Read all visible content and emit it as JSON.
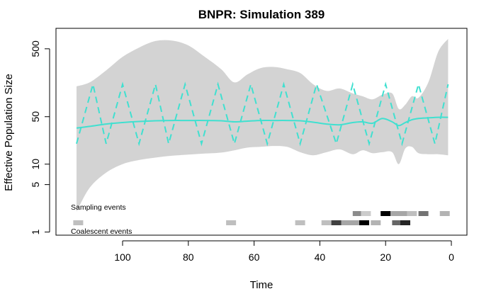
{
  "chart_data": {
    "type": "line",
    "title": "BNPR: Simulation 389",
    "xlabel": "Time",
    "ylabel": "Effective Population Size",
    "x_reversed": true,
    "y_scale": "log",
    "xlim": [
      115,
      0
    ],
    "ylim": [
      0.9,
      1000
    ],
    "x_ticks": [
      100,
      80,
      60,
      40,
      20,
      0
    ],
    "y_ticks": [
      1,
      5,
      10,
      50,
      500
    ],
    "colors": {
      "estimate": "#40e0d0",
      "band": "#d3d3d3",
      "truth": "#40e0d0"
    },
    "series": [
      {
        "style": "solid",
        "x": [
          114,
          110,
          105,
          100,
          95,
          90,
          85,
          80,
          75,
          70,
          66,
          62,
          58,
          54,
          50,
          46,
          42,
          38,
          34,
          30,
          27,
          24,
          21,
          18,
          16,
          14,
          12,
          10,
          7,
          4,
          1
        ],
        "y": [
          34,
          36,
          39,
          41,
          42.5,
          43.5,
          44,
          44,
          44,
          43.5,
          42,
          43,
          44,
          44,
          44,
          43.5,
          41.5,
          39,
          38,
          41,
          42,
          40,
          47,
          42,
          37,
          41,
          45,
          47,
          48,
          49,
          49
        ]
      },
      {
        "style": "dashed",
        "x": [
          114,
          109,
          105,
          100,
          95,
          90,
          86,
          81,
          76,
          71,
          66,
          61,
          56,
          51,
          46,
          41,
          35,
          30,
          25,
          20,
          15,
          10,
          5,
          1
        ],
        "y": [
          20,
          150,
          20,
          150,
          20,
          150,
          20,
          150,
          20,
          150,
          20,
          150,
          20,
          150,
          20,
          150,
          20,
          150,
          20,
          150,
          20,
          150,
          20,
          150
        ]
      }
    ],
    "band": {
      "x": [
        114,
        110,
        105,
        100,
        95,
        90,
        85,
        80,
        75,
        70,
        66,
        62,
        58,
        54,
        50,
        46,
        42,
        38,
        34,
        30,
        27,
        24,
        21,
        18,
        16,
        14,
        12,
        10,
        7,
        4,
        1
      ],
      "lower": [
        2.0,
        4.5,
        7.5,
        10,
        11.5,
        12.5,
        13.3,
        13.8,
        14.3,
        14.8,
        16,
        17.5,
        18,
        18.5,
        18,
        15,
        13.5,
        15,
        16.5,
        14,
        16,
        14.5,
        15,
        15,
        10,
        17,
        18,
        14.5,
        14,
        14,
        13.5
      ],
      "upper": [
        140,
        160,
        240,
        380,
        520,
        650,
        660,
        560,
        380,
        250,
        160,
        210,
        260,
        270,
        250,
        220,
        150,
        120,
        130,
        110,
        100,
        90,
        105,
        110,
        65,
        75,
        100,
        95,
        160,
        450,
        700
      ]
    },
    "event_rows": [
      {
        "label": "Sampling events"
      },
      {
        "label": "Coalescent events"
      }
    ],
    "sampling_events": [
      {
        "x": 28.5,
        "shade": 0.45
      },
      {
        "x": 26,
        "shade": 0.2
      },
      {
        "x": 20,
        "shade": 1.0
      },
      {
        "x": 17,
        "shade": 0.35
      },
      {
        "x": 14.5,
        "shade": 0.35
      },
      {
        "x": 12,
        "shade": 0.25
      },
      {
        "x": 8.5,
        "shade": 0.55
      },
      {
        "x": 2,
        "shade": 0.3
      }
    ],
    "coalescent_events": [
      {
        "x": 113.5,
        "shade": 0.25
      },
      {
        "x": 67,
        "shade": 0.25
      },
      {
        "x": 46,
        "shade": 0.25
      },
      {
        "x": 38,
        "shade": 0.25
      },
      {
        "x": 35,
        "shade": 0.75
      },
      {
        "x": 32,
        "shade": 0.35
      },
      {
        "x": 29.5,
        "shade": 0.35
      },
      {
        "x": 26.5,
        "shade": 1.0
      },
      {
        "x": 23,
        "shade": 0.3
      },
      {
        "x": 16.5,
        "shade": 0.6
      },
      {
        "x": 14,
        "shade": 0.85
      }
    ]
  }
}
